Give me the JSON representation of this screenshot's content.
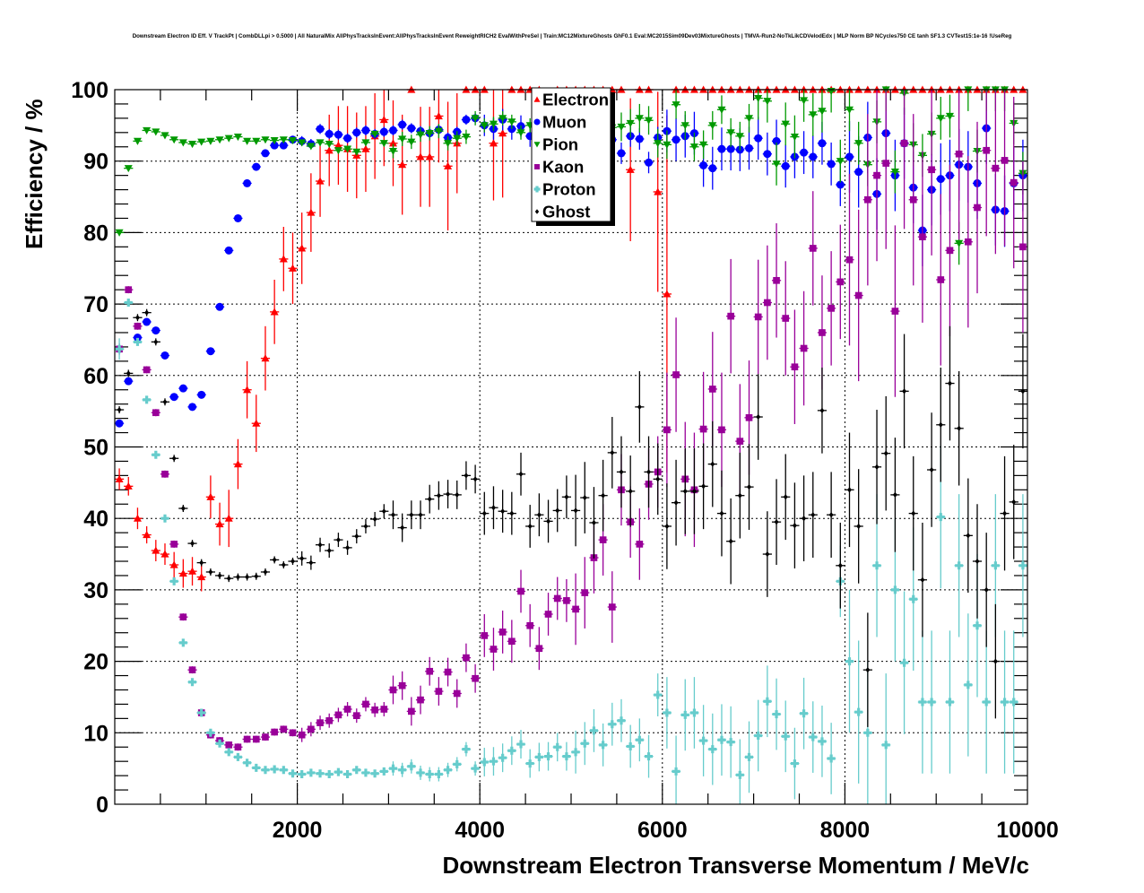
{
  "chart_data": {
    "type": "scatter",
    "title": "Downstream Electron ID Eff. V TrackPt | CombDLLpi > 0.5000 | All NaturalMix AllPhysTracksInEvent:AllPhysTracksInEvent ReweightRICH2 EvalWithPreSel | Train:MC12MixtureGhosts GhF0.1 Eval:MC2015Sim09Dev03MixtureGhosts | TMVA-Run2-NoTkLikCDVelodEdx | MLP Norm BP NCycles750 CE tanh SF1.3 CVTest15:1e-16 !UseReg",
    "xlabel": "Downstream Electron Transverse Momentum / MeV/c",
    "ylabel": "Efficiency / %",
    "xlim": [
      0,
      10000
    ],
    "ylim": [
      0,
      100
    ],
    "xticks": [
      "2000",
      "4000",
      "6000",
      "8000",
      "10000"
    ],
    "xtick_values": [
      2000,
      4000,
      6000,
      8000,
      10000
    ],
    "yticks": [
      "0",
      "10",
      "20",
      "30",
      "40",
      "50",
      "60",
      "70",
      "80",
      "90",
      "100"
    ],
    "ytick_values": [
      0,
      10,
      20,
      30,
      40,
      50,
      60,
      70,
      80,
      90,
      100
    ],
    "grid": true,
    "legend_position": "top-center",
    "bin_width": 100,
    "x_start": 50,
    "series": [
      {
        "name": "Electron",
        "color": "#ff0000",
        "marker": "triangle-up",
        "values": [
          45.5,
          44.5,
          40,
          37.7,
          35.5,
          35,
          33.5,
          32.3,
          32.6,
          31.8,
          43,
          39.2,
          40,
          47.6,
          58,
          53.3,
          62.4,
          68.9,
          76.3,
          75,
          77.8,
          82.8,
          87.2,
          91.5,
          92.2,
          91.7,
          90.8,
          91.7,
          93.5,
          95.8,
          92.5,
          89.5,
          100,
          90.6,
          90.6,
          96.3,
          89.3,
          92.5,
          100,
          100,
          100,
          92.5,
          93.9,
          100,
          100,
          100,
          100,
          97,
          100,
          100,
          100,
          100,
          100,
          100,
          100,
          100,
          88.8,
          100,
          100,
          85.7,
          71.4,
          100,
          100,
          100,
          100,
          100,
          100,
          100,
          100,
          100,
          100,
          100,
          100,
          100,
          100,
          100,
          100,
          100,
          100,
          100,
          100,
          100,
          100,
          100,
          100,
          100,
          100,
          100,
          100,
          100,
          100,
          100,
          100,
          100,
          100,
          100,
          100,
          100,
          100,
          100
        ],
        "errors": [
          1.5,
          1.3,
          1.5,
          1.2,
          1.5,
          1.5,
          1.8,
          2,
          2,
          2,
          3,
          3,
          4,
          3.5,
          4,
          4,
          4.5,
          4.5,
          4.5,
          5,
          5,
          5.5,
          5,
          5,
          5.5,
          6,
          6,
          6,
          6,
          6.5,
          6,
          7,
          0,
          7,
          7,
          6.5,
          9,
          7,
          0,
          0,
          0,
          8,
          9,
          0,
          0,
          0,
          0,
          6,
          0,
          0,
          0,
          0,
          0,
          0,
          0,
          0,
          10,
          0,
          0,
          14,
          25,
          0,
          0,
          0,
          0,
          0,
          0,
          0,
          0,
          0,
          0,
          0,
          0,
          0,
          0,
          0,
          0,
          0,
          0,
          0,
          0,
          0,
          0,
          0,
          0,
          0,
          0,
          0,
          0,
          0,
          0,
          0,
          0,
          0,
          0,
          0,
          0,
          0,
          0,
          0
        ]
      },
      {
        "name": "Muon",
        "color": "#0000ff",
        "marker": "circle",
        "values": [
          53.3,
          59.2,
          65.3,
          67.5,
          66.3,
          62.8,
          57,
          58.2,
          55.6,
          57.3,
          63.4,
          69.6,
          77.5,
          82,
          86.9,
          89.2,
          91.1,
          92.2,
          92.2,
          93,
          92.8,
          92.4,
          94.5,
          93.8,
          93.7,
          93.2,
          94,
          94.3,
          93.8,
          94.1,
          94.3,
          95.1,
          94.6,
          94.2,
          93.9,
          94.4,
          93.3,
          94.1,
          95.8,
          96,
          95,
          94.5,
          95.8,
          94.5,
          94.9,
          93.5,
          94.6,
          94,
          94.5,
          94.6,
          93.5,
          93,
          93.2,
          92.5,
          93,
          91.1,
          93.5,
          93.1,
          89.8,
          93.3,
          94.2,
          93,
          93.5,
          93.9,
          89.4,
          89,
          91.7,
          91.7,
          91.6,
          91.8,
          93.2,
          91,
          92.8,
          89.3,
          90.6,
          91.2,
          90.6,
          92.5,
          89.6,
          86.7,
          90.6,
          88.5,
          93.3,
          85.4,
          93.9,
          88,
          92.5,
          86.3,
          80.3,
          86,
          87.5,
          88,
          89.5,
          89.2,
          86.9,
          94.6,
          83.2,
          83,
          86.9,
          88
        ],
        "errors": [
          0.5,
          0.5,
          0.5,
          0.5,
          0.5,
          0.5,
          0.5,
          0.5,
          0.5,
          0.5,
          0.5,
          0.5,
          0.5,
          0.5,
          0.5,
          0.5,
          0.5,
          0.5,
          0.5,
          0.5,
          0.7,
          0.7,
          0.7,
          0.7,
          0.7,
          0.7,
          0.7,
          0.7,
          0.7,
          0.7,
          0.7,
          0.7,
          0.7,
          0.7,
          0.7,
          0.7,
          0.7,
          0.7,
          0.7,
          0.7,
          1.5,
          1.5,
          1.5,
          1.5,
          1.5,
          1.5,
          1.5,
          1.5,
          1.5,
          1.5,
          1.5,
          1.5,
          1.5,
          1.5,
          1.5,
          1.5,
          1.5,
          1.5,
          1.5,
          1.5,
          3,
          3,
          3,
          3,
          3,
          3,
          3,
          3,
          3,
          3,
          3,
          3,
          3,
          3,
          3,
          3,
          3,
          3,
          3,
          3,
          5,
          5,
          5,
          5,
          5,
          5,
          5,
          5,
          5,
          5,
          5,
          5,
          5,
          5,
          5,
          5,
          5,
          5,
          5,
          5
        ]
      },
      {
        "name": "Pion",
        "color": "#009900",
        "marker": "triangle-down",
        "values": [
          80,
          89,
          92.8,
          94.3,
          94.1,
          93.6,
          93,
          92.6,
          92.4,
          92.7,
          92.8,
          93,
          93.2,
          93.4,
          92.8,
          92.8,
          93,
          92.9,
          93,
          92.9,
          92.6,
          92.1,
          92.6,
          92.4,
          91.5,
          91.7,
          91.3,
          92.6,
          93.8,
          92.5,
          91.4,
          93.1,
          92.7,
          93.7,
          93.9,
          94.2,
          92.5,
          93.2,
          93.4,
          96,
          95,
          95.2,
          96,
          95.5,
          94,
          95,
          95.8,
          93.5,
          96.5,
          92,
          94,
          93.4,
          96.6,
          94,
          94.7,
          94.8,
          95.3,
          96,
          95.7,
          92.5,
          92.3,
          97.9,
          95,
          92,
          92.3,
          95,
          97.2,
          94,
          93.5,
          96,
          98.8,
          98.4,
          89.6,
          95.2,
          93.4,
          98.5,
          96.5,
          97,
          99.8,
          90,
          97.2,
          92.5,
          89.5,
          95.5,
          100,
          88.5,
          99.5,
          92.3,
          90.8,
          93.8,
          96,
          96.3,
          78.5,
          100,
          91.4,
          100,
          100,
          100,
          95.3,
          88.3
        ],
        "errors": [
          0.4,
          0.4,
          0.4,
          0.4,
          0.4,
          0.4,
          0.4,
          0.4,
          0.4,
          0.4,
          0.4,
          0.4,
          0.4,
          0.4,
          0.4,
          0.4,
          0.4,
          0.4,
          0.4,
          0.4,
          0.4,
          0.4,
          0.4,
          0.4,
          0.4,
          0.4,
          0.4,
          0.4,
          0.4,
          0.4,
          1,
          1,
          1,
          1,
          1,
          1,
          1,
          1,
          1,
          1,
          1,
          1,
          1,
          1,
          1,
          1,
          1,
          1,
          1,
          1,
          2,
          2,
          2,
          2,
          2,
          2,
          2,
          2,
          2,
          2,
          2,
          2,
          2,
          2,
          2,
          2,
          2,
          2,
          2,
          2,
          3,
          3,
          3,
          3,
          3,
          3,
          3,
          3,
          3,
          3,
          3,
          3,
          3,
          3,
          3,
          3,
          3,
          3,
          3,
          3,
          3,
          3,
          3,
          3,
          3,
          3,
          3,
          3,
          3,
          3
        ]
      },
      {
        "name": "Kaon",
        "color": "#990099",
        "marker": "square",
        "values": [
          63.7,
          72,
          66.9,
          60.8,
          54.8,
          46.2,
          36.4,
          26.2,
          18.8,
          12.8,
          9.7,
          8.9,
          8.3,
          8,
          9.1,
          9.1,
          9.4,
          10.1,
          10.5,
          10,
          9.7,
          10.5,
          11.4,
          11.7,
          12.5,
          13.3,
          12.4,
          14,
          13.2,
          13.3,
          16,
          16.6,
          13,
          14.6,
          18.6,
          15.8,
          18.5,
          15.5,
          20.5,
          17.6,
          23.6,
          21.7,
          24.1,
          22.8,
          29.8,
          25,
          21.8,
          26.6,
          28.8,
          28.5,
          27.3,
          29.6,
          34.5,
          37,
          27.6,
          44,
          39.5,
          36.4,
          44.8,
          46.5,
          52.4,
          60.1,
          45.5,
          44,
          52.5,
          58.1,
          52.4,
          68.3,
          50.8,
          54.1,
          68.2,
          70.2,
          73.3,
          68,
          61.2,
          63.8,
          77.8,
          66,
          69.4,
          73.1,
          76.2,
          71.2,
          84.6,
          88,
          89.7,
          69,
          92.5,
          84.6,
          79.4,
          88.8,
          73.4,
          77.5,
          91,
          78.7,
          83.5,
          91.5,
          89,
          90.1,
          87,
          78
        ],
        "errors": [
          0.8,
          0.5,
          0.5,
          0.5,
          0.5,
          0.5,
          0.5,
          0.5,
          0.5,
          0.5,
          0.5,
          0.5,
          0.5,
          0.5,
          0.5,
          0.5,
          0.5,
          0.5,
          0.5,
          0.5,
          1,
          1,
          1,
          1,
          1,
          1,
          1,
          1,
          1,
          1,
          2,
          2,
          2,
          2,
          2,
          2,
          2,
          2,
          2,
          2,
          3,
          3,
          3,
          3,
          3,
          3,
          3,
          3,
          3,
          3,
          5,
          5,
          5,
          5,
          5,
          5,
          5,
          5,
          5,
          5,
          8,
          8,
          8,
          8,
          8,
          8,
          8,
          8,
          8,
          8,
          8,
          8,
          8,
          8,
          8,
          8,
          8,
          8,
          8,
          8,
          12,
          12,
          12,
          12,
          12,
          12,
          12,
          12,
          12,
          12,
          12,
          12,
          12,
          12,
          12,
          12,
          12,
          12,
          12,
          12
        ]
      },
      {
        "name": "Proton",
        "color": "#66cccc",
        "marker": "cross",
        "values": [
          63.7,
          70.2,
          64.7,
          56.6,
          48.9,
          40,
          31.2,
          22.6,
          17.1,
          12.8,
          10,
          8.5,
          7.3,
          6.6,
          5.8,
          5.1,
          4.8,
          4.9,
          4.8,
          4.3,
          4.2,
          4.4,
          4.3,
          4.2,
          4.5,
          4.2,
          4.8,
          4.4,
          4.3,
          4.6,
          5,
          4.8,
          5.3,
          4.4,
          4.2,
          4.2,
          4.8,
          5.6,
          7.7,
          5,
          5.9,
          6,
          6.5,
          7.5,
          8.4,
          5.7,
          6.6,
          6.7,
          8,
          6.7,
          7.3,
          8.5,
          10.3,
          8.3,
          11.2,
          11.7,
          8.1,
          9,
          6.7,
          15.3,
          12.8,
          4.6,
          12.5,
          12.8,
          8.9,
          7.7,
          9,
          8.7,
          4.1,
          6.6,
          9.6,
          14.4,
          12.6,
          9.5,
          5.7,
          12.7,
          9.4,
          8.8,
          6.4,
          31.2,
          20,
          12.9,
          10,
          33.4,
          8.3,
          30,
          19.8,
          28.7,
          14.3,
          14.3,
          40.2,
          14.3,
          33.4,
          16.7,
          25,
          14.3,
          33.4,
          14.3,
          14.3,
          33.4
        ],
        "errors": [
          1.5,
          0.5,
          0.5,
          0.5,
          0.5,
          0.5,
          0.5,
          0.5,
          0.5,
          0.5,
          0.5,
          0.5,
          0.5,
          0.5,
          0.5,
          0.5,
          0.5,
          0.5,
          0.5,
          0.5,
          0.5,
          0.5,
          0.5,
          0.5,
          0.5,
          0.5,
          0.5,
          0.5,
          0.5,
          0.5,
          1,
          1,
          1,
          1,
          1,
          1,
          1,
          1,
          1,
          1,
          2,
          2,
          2,
          2,
          2,
          2,
          2,
          2,
          2,
          2,
          3,
          3,
          3,
          3,
          3,
          3,
          3,
          3,
          3,
          3,
          5,
          5,
          5,
          5,
          5,
          5,
          5,
          5,
          5,
          5,
          5,
          5,
          5,
          5,
          5,
          5,
          5,
          5,
          5,
          5,
          10,
          10,
          10,
          10,
          10,
          10,
          10,
          10,
          10,
          10,
          10,
          10,
          10,
          10,
          10,
          10,
          10,
          10,
          10,
          10
        ]
      },
      {
        "name": "Ghost",
        "color": "#000000",
        "marker": "diamond",
        "values": [
          55.2,
          60.3,
          68.1,
          68.8,
          64.7,
          56.3,
          48.4,
          41.4,
          36.5,
          33.8,
          32.5,
          32,
          31.6,
          31.8,
          31.8,
          31.9,
          32.5,
          34.2,
          33.5,
          34,
          34.4,
          33.8,
          36.3,
          35.5,
          37,
          35.9,
          37.5,
          38.9,
          39.9,
          41,
          40.5,
          38.7,
          40.5,
          40.5,
          42.7,
          43.2,
          43.4,
          43.3,
          46,
          45.5,
          40.7,
          41.5,
          41,
          40.7,
          46.2,
          38.9,
          40.5,
          39.6,
          41.1,
          43,
          41.1,
          42.9,
          39.4,
          43.2,
          49.2,
          46.5,
          43.8,
          55.6,
          46.5,
          45.5,
          38.9,
          42.2,
          43.8,
          43.8,
          44.5,
          47.6,
          40.7,
          36.8,
          43.2,
          44.4,
          54.2,
          35,
          39.5,
          43,
          39,
          40,
          40.5,
          55.1,
          40.5,
          33.4,
          44,
          38.9,
          18.8,
          47.2,
          49.1,
          43.3,
          57.8,
          40.7,
          31.4,
          46.8,
          53.1,
          58.9,
          52.6,
          37.6,
          34,
          30,
          20,
          40.7,
          42.3,
          57.8
        ],
        "errors": [
          0.5,
          0.5,
          0.5,
          0.5,
          0.5,
          0.5,
          0.5,
          0.5,
          0.5,
          0.5,
          0.5,
          0.5,
          0.5,
          0.5,
          0.5,
          0.5,
          0.5,
          0.5,
          0.5,
          0.5,
          1,
          1,
          1,
          1,
          1,
          1,
          1,
          1,
          1,
          1,
          2,
          2,
          2,
          2,
          2,
          2,
          2,
          2,
          2,
          2,
          3,
          3,
          3,
          3,
          3,
          3,
          3,
          3,
          3,
          3,
          5,
          5,
          5,
          5,
          5,
          5,
          5,
          5,
          5,
          5,
          6,
          6,
          6,
          6,
          6,
          6,
          6,
          6,
          6,
          6,
          6,
          6,
          6,
          6,
          6,
          6,
          6,
          6,
          6,
          6,
          8,
          8,
          8,
          8,
          8,
          8,
          8,
          8,
          8,
          8,
          8,
          8,
          8,
          8,
          8,
          8,
          8,
          8,
          8,
          8
        ]
      }
    ]
  }
}
